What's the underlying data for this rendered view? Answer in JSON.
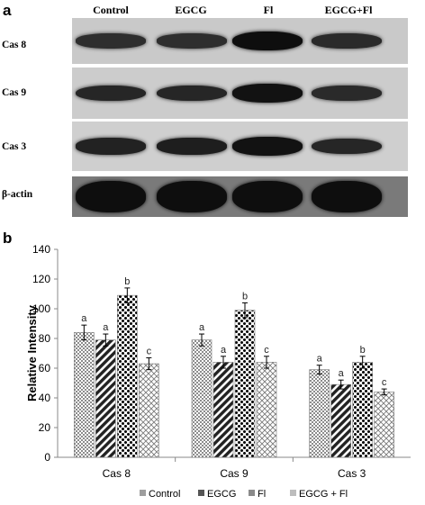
{
  "figure": {
    "panel_a_letter": "a",
    "panel_b_letter": "b"
  },
  "blot": {
    "lanes": [
      "Control",
      "EGCG",
      "Fl",
      "EGCG+Fl"
    ],
    "rows": [
      {
        "label": "Cas 8",
        "band_intensity": [
          0.55,
          0.55,
          0.95,
          0.6
        ]
      },
      {
        "label": "Cas 9",
        "band_intensity": [
          0.65,
          0.65,
          0.9,
          0.6
        ]
      },
      {
        "label": "Cas 3",
        "band_intensity": [
          0.7,
          0.75,
          0.9,
          0.65
        ]
      },
      {
        "label": "β-actin",
        "band_intensity": [
          0.95,
          0.95,
          0.95,
          0.95
        ]
      }
    ]
  },
  "chart_data": {
    "type": "bar",
    "title": "",
    "xlabel": "",
    "ylabel": "Relative Intensity",
    "ylim": [
      0,
      140
    ],
    "yticks": [
      0,
      20,
      40,
      60,
      80,
      100,
      120,
      140
    ],
    "categories": [
      "Cas 8",
      "Cas 9",
      "Cas 3"
    ],
    "series": [
      {
        "name": "Control",
        "values": [
          84,
          79,
          59
        ],
        "errors": [
          5,
          4,
          3
        ],
        "letters": [
          "a",
          "a",
          "a"
        ],
        "pattern": "checker",
        "swatch_color": "#9e9e9e"
      },
      {
        "name": "EGCG",
        "values": [
          79,
          64,
          49
        ],
        "errors": [
          4,
          4,
          3
        ],
        "letters": [
          "a",
          "a",
          "a"
        ],
        "pattern": "diag",
        "swatch_color": "#555555"
      },
      {
        "name": "Fl",
        "values": [
          109,
          99,
          64
        ],
        "errors": [
          5,
          5,
          4
        ],
        "letters": [
          "b",
          "b",
          "b"
        ],
        "pattern": "dots",
        "swatch_color": "#8a8a8a"
      },
      {
        "name": "EGCG + Fl",
        "values": [
          63,
          64,
          44
        ],
        "errors": [
          4,
          4,
          2
        ],
        "letters": [
          "c",
          "c",
          "c"
        ],
        "pattern": "cross",
        "swatch_color": "#bdbdbd"
      }
    ],
    "grid": false,
    "legend_position": "bottom"
  }
}
